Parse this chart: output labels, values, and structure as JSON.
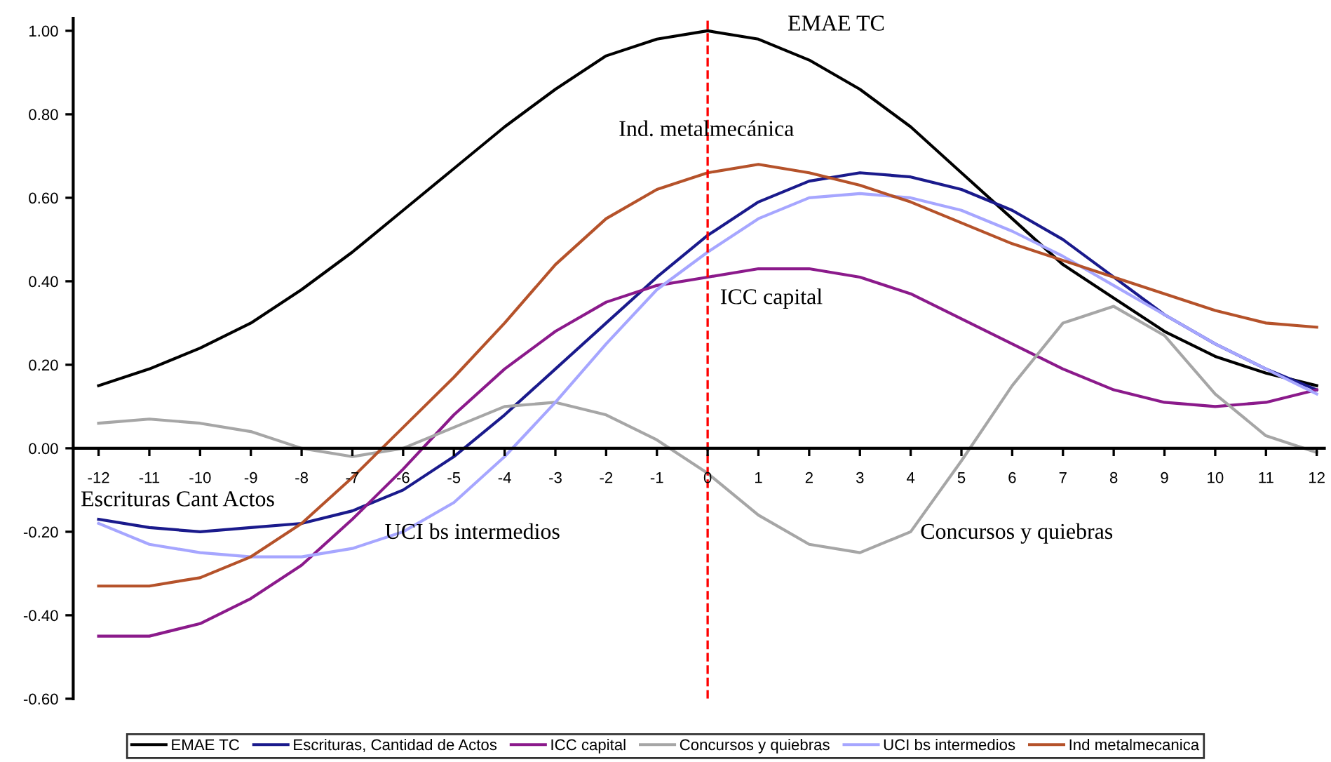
{
  "chart_data": {
    "type": "line",
    "x": [
      -12,
      -11,
      -10,
      -9,
      -8,
      -7,
      -6,
      -5,
      -4,
      -3,
      -2,
      -1,
      0,
      1,
      2,
      3,
      4,
      5,
      6,
      7,
      8,
      9,
      10,
      11,
      12
    ],
    "series": [
      {
        "name": "EMAE TC",
        "color": "#000000",
        "values": [
          0.15,
          0.19,
          0.24,
          0.3,
          0.38,
          0.47,
          0.57,
          0.67,
          0.77,
          0.86,
          0.94,
          0.98,
          1.0,
          0.98,
          0.93,
          0.86,
          0.77,
          0.66,
          0.55,
          0.44,
          0.36,
          0.28,
          0.22,
          0.18,
          0.15
        ]
      },
      {
        "name": "Escrituras, Cantidad de Actos",
        "color": "#1a1a8c",
        "values": [
          -0.17,
          -0.19,
          -0.2,
          -0.19,
          -0.18,
          -0.15,
          -0.1,
          -0.02,
          0.08,
          0.19,
          0.3,
          0.41,
          0.51,
          0.59,
          0.64,
          0.66,
          0.65,
          0.62,
          0.57,
          0.5,
          0.41,
          0.32,
          0.25,
          0.19,
          0.14
        ]
      },
      {
        "name": "ICC capital",
        "color": "#8b1a8b",
        "values": [
          -0.45,
          -0.45,
          -0.42,
          -0.36,
          -0.28,
          -0.17,
          -0.05,
          0.08,
          0.19,
          0.28,
          0.35,
          0.39,
          0.41,
          0.43,
          0.43,
          0.41,
          0.37,
          0.31,
          0.25,
          0.19,
          0.14,
          0.11,
          0.1,
          0.11,
          0.14
        ]
      },
      {
        "name": "Concursos y quiebras",
        "color": "#a6a6a6",
        "values": [
          0.06,
          0.07,
          0.06,
          0.04,
          0.0,
          -0.02,
          0.0,
          0.05,
          0.1,
          0.11,
          0.08,
          0.02,
          -0.06,
          -0.16,
          -0.23,
          -0.25,
          -0.2,
          -0.03,
          0.15,
          0.3,
          0.34,
          0.27,
          0.13,
          0.03,
          -0.01
        ]
      },
      {
        "name": "UCI bs intermedios",
        "color": "#a6a6ff",
        "values": [
          -0.18,
          -0.23,
          -0.25,
          -0.26,
          -0.26,
          -0.24,
          -0.2,
          -0.13,
          -0.02,
          0.11,
          0.25,
          0.38,
          0.47,
          0.55,
          0.6,
          0.61,
          0.6,
          0.57,
          0.52,
          0.46,
          0.39,
          0.32,
          0.25,
          0.19,
          0.13
        ]
      },
      {
        "name": "Ind metalmecanica",
        "color": "#b5522a",
        "values": [
          -0.33,
          -0.33,
          -0.31,
          -0.26,
          -0.18,
          -0.07,
          0.05,
          0.17,
          0.3,
          0.44,
          0.55,
          0.62,
          0.66,
          0.68,
          0.66,
          0.63,
          0.59,
          0.54,
          0.49,
          0.45,
          0.41,
          0.37,
          0.33,
          0.3,
          0.29
        ]
      }
    ],
    "xlim": [
      -12.5,
      12.15
    ],
    "xticks": [
      -12,
      -11,
      -10,
      -9,
      -8,
      -7,
      -6,
      -5,
      -4,
      -3,
      -2,
      -1,
      0,
      1,
      2,
      3,
      4,
      5,
      6,
      7,
      8,
      9,
      10,
      11,
      12
    ],
    "ylim": [
      -0.6,
      1.03
    ],
    "yticks": [
      {
        "value": -0.6,
        "label": "-0.60"
      },
      {
        "value": -0.4,
        "label": "-0.40"
      },
      {
        "value": -0.2,
        "label": "-0.20"
      },
      {
        "value": 0,
        "label": "0.00"
      },
      {
        "value": 0.2,
        "label": "0.20"
      },
      {
        "value": 0.4,
        "label": "0.40"
      },
      {
        "value": 0.6,
        "label": "0.60"
      },
      {
        "value": 0.8,
        "label": "0.80"
      },
      {
        "value": 1.0,
        "label": "1.00"
      }
    ],
    "ref_lines": [
      {
        "axis": "x",
        "value": 0,
        "color": "#ff0000",
        "line_style": "dashed"
      }
    ],
    "annotations": [
      "EMAE TC",
      "Ind. metalmecánica",
      "ICC capital",
      "Escrituras Cant Actos",
      "UCI bs intermedios",
      "Concursos y quiebras"
    ],
    "grid": false,
    "legend": "bottom",
    "marker": "none",
    "line_style": "solid"
  }
}
